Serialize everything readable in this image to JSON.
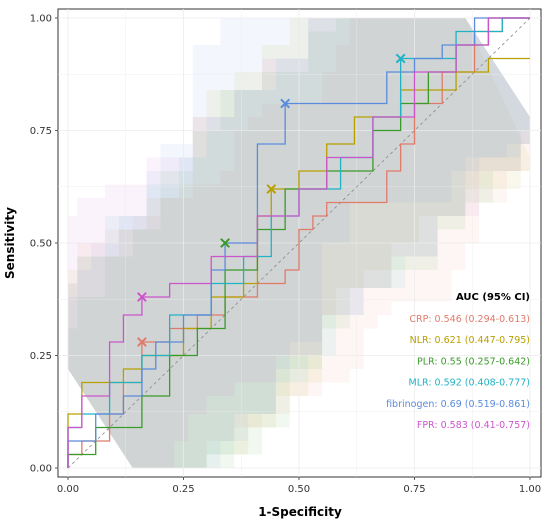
{
  "chart_data": {
    "type": "line",
    "title": "",
    "xlabel": "1-Specificity",
    "ylabel": "Sensitivity",
    "xlim": [
      0,
      1
    ],
    "ylim": [
      0,
      1
    ],
    "x_ticks": [
      "0.00",
      "0.25",
      "0.50",
      "0.75",
      "1.00"
    ],
    "y_ticks": [
      "0.00",
      "0.25",
      "0.50",
      "0.75",
      "1.00"
    ],
    "grid": true,
    "legend_position": "bottom-right",
    "legend_title": "AUC (95% CI)",
    "reference_line": "diagonal dashed",
    "series": [
      {
        "name": "CRP",
        "label": "CRP: 0.546 (0.294-0.613)",
        "color": "#e07b6a",
        "cutoff": [
          0.16,
          0.28
        ],
        "x": [
          0,
          0,
          0.03,
          0.03,
          0.09,
          0.09,
          0.12,
          0.12,
          0.16,
          0.16,
          0.22,
          0.22,
          0.28,
          0.28,
          0.34,
          0.34,
          0.41,
          0.41,
          0.47,
          0.47,
          0.5,
          0.5,
          0.53,
          0.53,
          0.56,
          0.56,
          0.59,
          0.59,
          0.69,
          0.69,
          0.72,
          0.72,
          0.75,
          0.75,
          0.81,
          0.81,
          0.88,
          0.88,
          0.94,
          0.94,
          1
        ],
        "y": [
          0,
          0.03,
          0.03,
          0.06,
          0.06,
          0.12,
          0.12,
          0.19,
          0.19,
          0.28,
          0.28,
          0.31,
          0.31,
          0.34,
          0.34,
          0.38,
          0.38,
          0.41,
          0.41,
          0.44,
          0.44,
          0.53,
          0.53,
          0.56,
          0.56,
          0.59,
          0.59,
          0.59,
          0.59,
          0.66,
          0.66,
          0.72,
          0.72,
          0.81,
          0.81,
          0.88,
          0.88,
          0.97,
          0.97,
          1,
          1
        ]
      },
      {
        "name": "NLR",
        "label": "NLR: 0.621 (0.447-0.795)",
        "color": "#b8a000",
        "cutoff": [
          0.44,
          0.62
        ],
        "x": [
          0,
          0,
          0.03,
          0.03,
          0.12,
          0.12,
          0.16,
          0.16,
          0.25,
          0.25,
          0.31,
          0.31,
          0.38,
          0.38,
          0.41,
          0.41,
          0.44,
          0.44,
          0.5,
          0.5,
          0.56,
          0.56,
          0.62,
          0.62,
          0.72,
          0.72,
          0.84,
          0.84,
          0.91,
          0.91,
          1
        ],
        "y": [
          0,
          0.12,
          0.12,
          0.19,
          0.19,
          0.22,
          0.22,
          0.25,
          0.25,
          0.31,
          0.31,
          0.38,
          0.38,
          0.41,
          0.41,
          0.56,
          0.56,
          0.62,
          0.62,
          0.66,
          0.66,
          0.72,
          0.72,
          0.78,
          0.78,
          0.84,
          0.84,
          0.88,
          0.88,
          0.91,
          0.91
        ]
      },
      {
        "name": "PLR",
        "label": "PLR: 0.55 (0.257-0.642)",
        "color": "#3a9a2a",
        "cutoff": [
          0.34,
          0.5
        ],
        "x": [
          0,
          0,
          0.06,
          0.06,
          0.09,
          0.09,
          0.16,
          0.16,
          0.22,
          0.22,
          0.28,
          0.28,
          0.34,
          0.34,
          0.41,
          0.41,
          0.47,
          0.47,
          0.56,
          0.56,
          0.66,
          0.66,
          0.72,
          0.72,
          0.78,
          0.78,
          0.84,
          0.84,
          0.91,
          0.91,
          1
        ],
        "y": [
          0,
          0.03,
          0.03,
          0.09,
          0.09,
          0.09,
          0.09,
          0.16,
          0.16,
          0.25,
          0.25,
          0.31,
          0.31,
          0.44,
          0.44,
          0.53,
          0.53,
          0.62,
          0.62,
          0.66,
          0.66,
          0.75,
          0.75,
          0.81,
          0.81,
          0.88,
          0.88,
          0.94,
          0.94,
          1,
          1
        ]
      },
      {
        "name": "MLR",
        "label": "MLR: 0.592 (0.408-0.777)",
        "color": "#1fb3c4",
        "cutoff": [
          0.72,
          0.91
        ],
        "x": [
          0,
          0,
          0.03,
          0.03,
          0.09,
          0.09,
          0.16,
          0.16,
          0.22,
          0.22,
          0.31,
          0.31,
          0.38,
          0.38,
          0.44,
          0.44,
          0.5,
          0.5,
          0.59,
          0.59,
          0.66,
          0.66,
          0.72,
          0.72,
          0.84,
          0.84,
          0.94,
          0.94,
          1
        ],
        "y": [
          0,
          0.09,
          0.09,
          0.12,
          0.12,
          0.19,
          0.19,
          0.25,
          0.25,
          0.34,
          0.34,
          0.41,
          0.41,
          0.47,
          0.47,
          0.56,
          0.56,
          0.62,
          0.62,
          0.69,
          0.69,
          0.78,
          0.78,
          0.91,
          0.91,
          0.97,
          0.97,
          1,
          1
        ]
      },
      {
        "name": "fibrinogen",
        "label": "fibrinogen: 0.69 (0.519-0.861)",
        "color": "#5b8bdc",
        "cutoff": [
          0.47,
          0.81
        ],
        "x": [
          0,
          0,
          0.06,
          0.06,
          0.12,
          0.12,
          0.16,
          0.16,
          0.19,
          0.19,
          0.25,
          0.25,
          0.31,
          0.31,
          0.34,
          0.34,
          0.41,
          0.41,
          0.47,
          0.47,
          0.69,
          0.69,
          0.75,
          0.75,
          0.81,
          0.81,
          0.88,
          0.88,
          0.94,
          0.94,
          1
        ],
        "y": [
          0,
          0.06,
          0.06,
          0.12,
          0.12,
          0.16,
          0.16,
          0.22,
          0.22,
          0.28,
          0.28,
          0.34,
          0.34,
          0.44,
          0.44,
          0.5,
          0.5,
          0.72,
          0.72,
          0.81,
          0.81,
          0.88,
          0.88,
          0.91,
          0.91,
          0.94,
          0.94,
          1,
          1,
          1,
          1
        ]
      },
      {
        "name": "FPR",
        "label": "FPR: 0.583 (0.41-0.757)",
        "color": "#cc55cc",
        "cutoff": [
          0.16,
          0.38
        ],
        "x": [
          0,
          0,
          0.03,
          0.03,
          0.09,
          0.09,
          0.12,
          0.12,
          0.16,
          0.16,
          0.22,
          0.22,
          0.31,
          0.31,
          0.41,
          0.41,
          0.5,
          0.5,
          0.56,
          0.56,
          0.66,
          0.66,
          0.75,
          0.75,
          0.84,
          0.84,
          0.91,
          0.91,
          1
        ],
        "y": [
          0,
          0.09,
          0.09,
          0.16,
          0.16,
          0.28,
          0.28,
          0.34,
          0.34,
          0.38,
          0.38,
          0.41,
          0.41,
          0.47,
          0.47,
          0.56,
          0.56,
          0.62,
          0.62,
          0.69,
          0.69,
          0.78,
          0.78,
          0.88,
          0.88,
          0.94,
          0.94,
          1,
          1
        ]
      }
    ]
  }
}
